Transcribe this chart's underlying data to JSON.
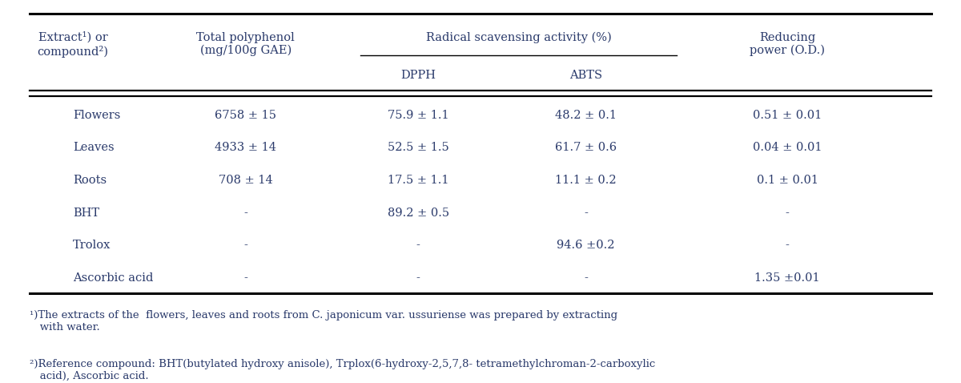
{
  "figsize": [
    12.0,
    4.78
  ],
  "dpi": 100,
  "bg_color": "#ffffff",
  "text_color": "#2a3a6b",
  "font_family": "DejaVu Serif",
  "rows": [
    [
      "Flowers",
      "6758 ± 15",
      "75.9 ± 1.1",
      "48.2 ± 0.1",
      "0.51 ± 0.01"
    ],
    [
      "Leaves",
      "4933 ± 14",
      "52.5 ± 1.5",
      "61.7 ± 0.6",
      "0.04 ± 0.01"
    ],
    [
      "Roots",
      "708 ± 14",
      "17.5 ± 1.1",
      "11.1 ± 0.2",
      "0.1 ± 0.01"
    ],
    [
      "BHT",
      "-",
      "89.2 ± 0.5",
      "-",
      "-"
    ],
    [
      "Trolox",
      "-",
      "-",
      "94.6 ±0.2",
      "-"
    ],
    [
      "Ascorbic acid",
      "-",
      "-",
      "-",
      "1.35 ±0.01"
    ]
  ]
}
